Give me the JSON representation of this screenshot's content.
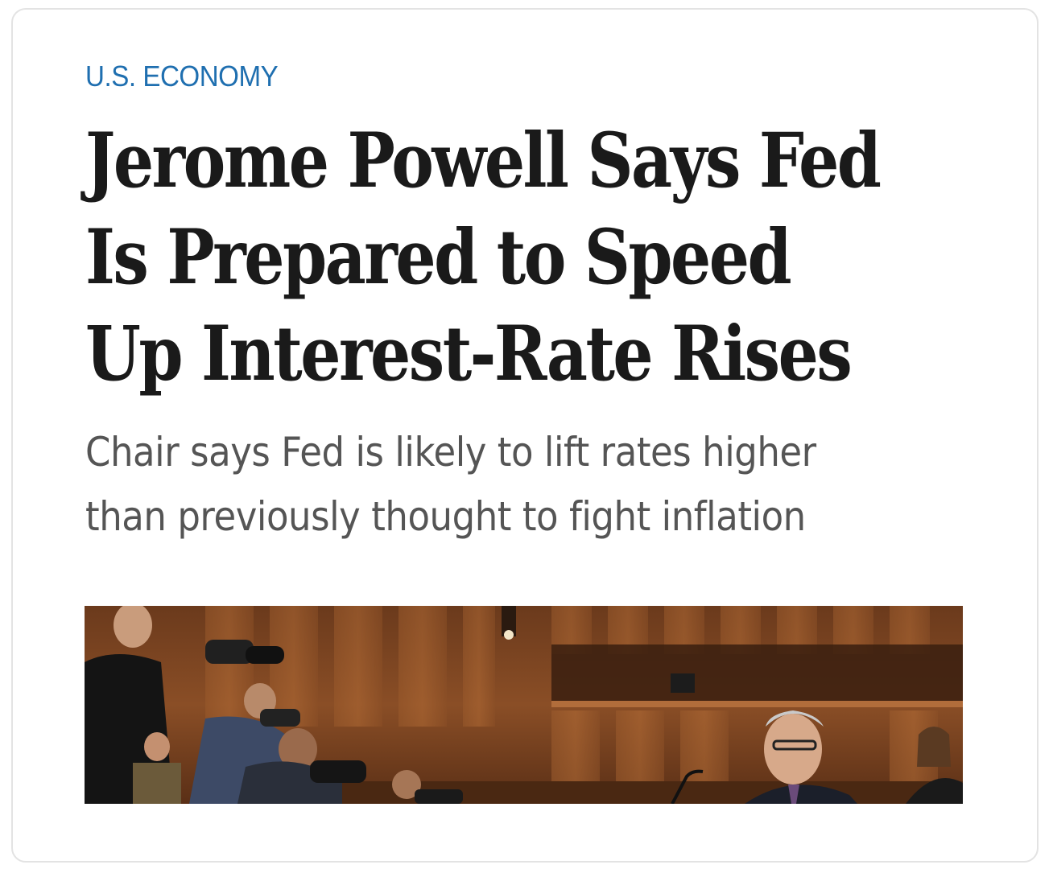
{
  "article": {
    "section_label": "U.S. ECONOMY",
    "headline_lines": [
      "Jerome Powell Says Fed",
      "Is Prepared to Speed",
      "Up Interest-Rate Rises"
    ],
    "dek_lines": [
      "Chair says Fed is likely to lift rates higher",
      "than previously thought to fight inflation"
    ]
  },
  "colors": {
    "section_label": "#1f6fb0",
    "headline": "#1a1a1a",
    "dek": "#555555",
    "card_border": "#e3e3e3"
  }
}
